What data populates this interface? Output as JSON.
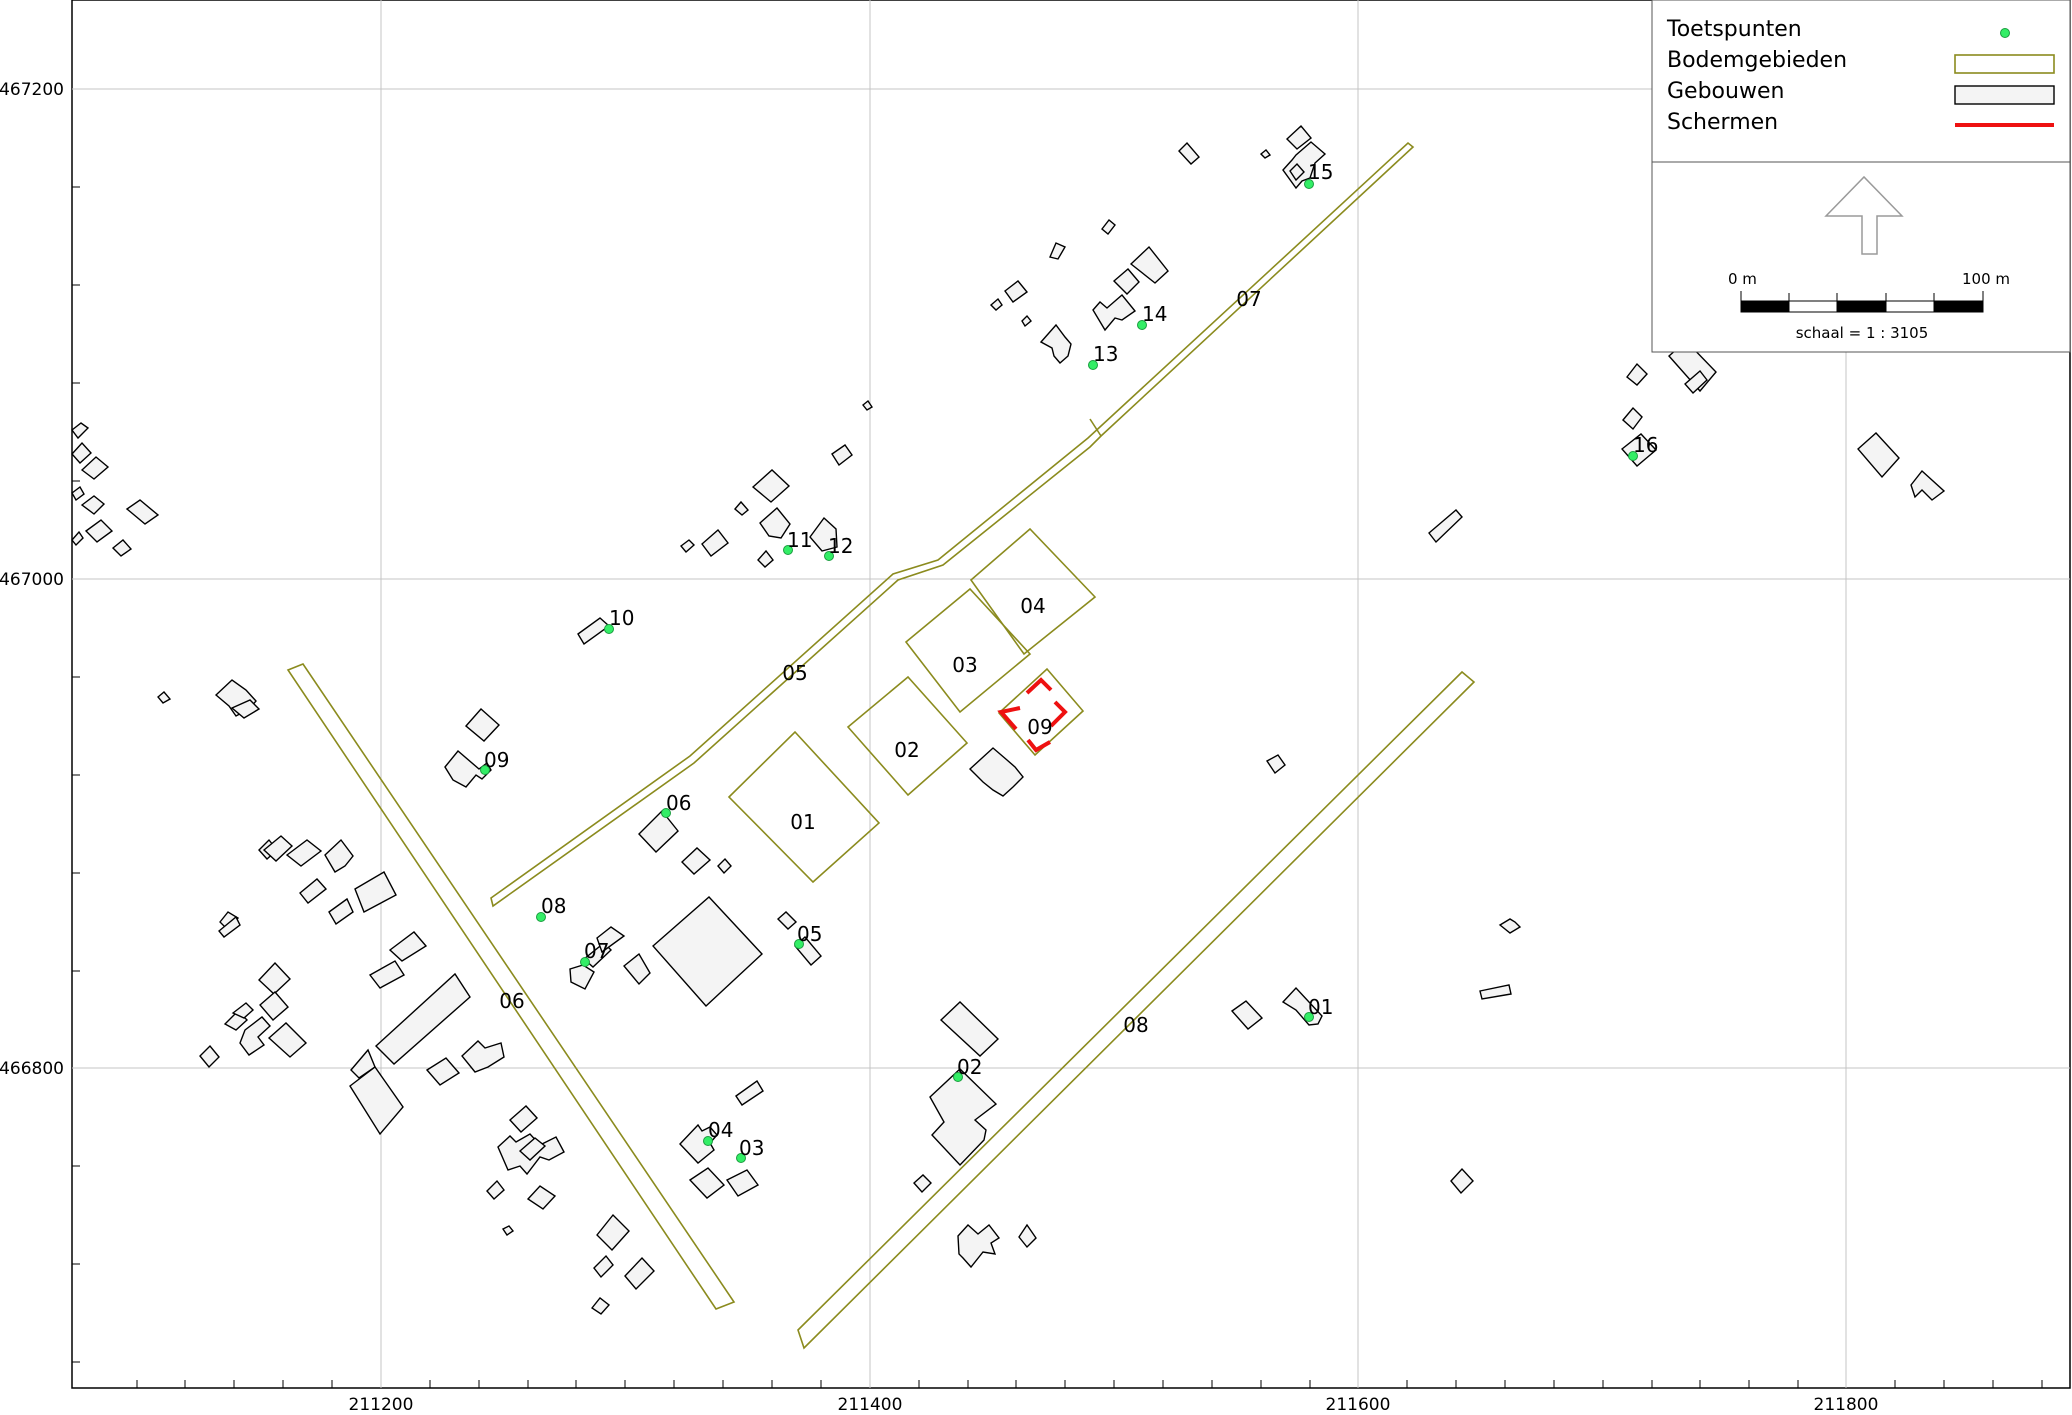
{
  "axes": {
    "x_ticks": [
      "211200",
      "211400",
      "211600",
      "211800"
    ],
    "y_ticks": [
      "467200",
      "467000",
      "466800"
    ]
  },
  "legend": {
    "items": [
      {
        "label": "Toetspunten",
        "symbol": "green-point"
      },
      {
        "label": "Bodemgebieden",
        "symbol": "olive-outline"
      },
      {
        "label": "Gebouwen",
        "symbol": "building-box"
      },
      {
        "label": "Schermen",
        "symbol": "red-line"
      }
    ],
    "scale": {
      "start_label": "0 m",
      "end_label": "100 m",
      "text": "schaal = 1 : 3105"
    }
  },
  "zones": [
    {
      "label": "01"
    },
    {
      "label": "02"
    },
    {
      "label": "03"
    },
    {
      "label": "04"
    },
    {
      "label": "05"
    },
    {
      "label": "06"
    },
    {
      "label": "07"
    },
    {
      "label": "08"
    },
    {
      "label": "09"
    }
  ],
  "test_points": [
    {
      "label": "01"
    },
    {
      "label": "02"
    },
    {
      "label": "03"
    },
    {
      "label": "04"
    },
    {
      "label": "05"
    },
    {
      "label": "06"
    },
    {
      "label": "07"
    },
    {
      "label": "08"
    },
    {
      "label": "09"
    },
    {
      "label": "10"
    },
    {
      "label": "11"
    },
    {
      "label": "12"
    },
    {
      "label": "13"
    },
    {
      "label": "14"
    },
    {
      "label": "15"
    },
    {
      "label": "16"
    }
  ],
  "colors": {
    "zone": "#8b8b1e",
    "screen": "#ee1111",
    "point": "#33ee66",
    "building_fill": "#f4f4f4",
    "grid": "#c4c4c4"
  }
}
